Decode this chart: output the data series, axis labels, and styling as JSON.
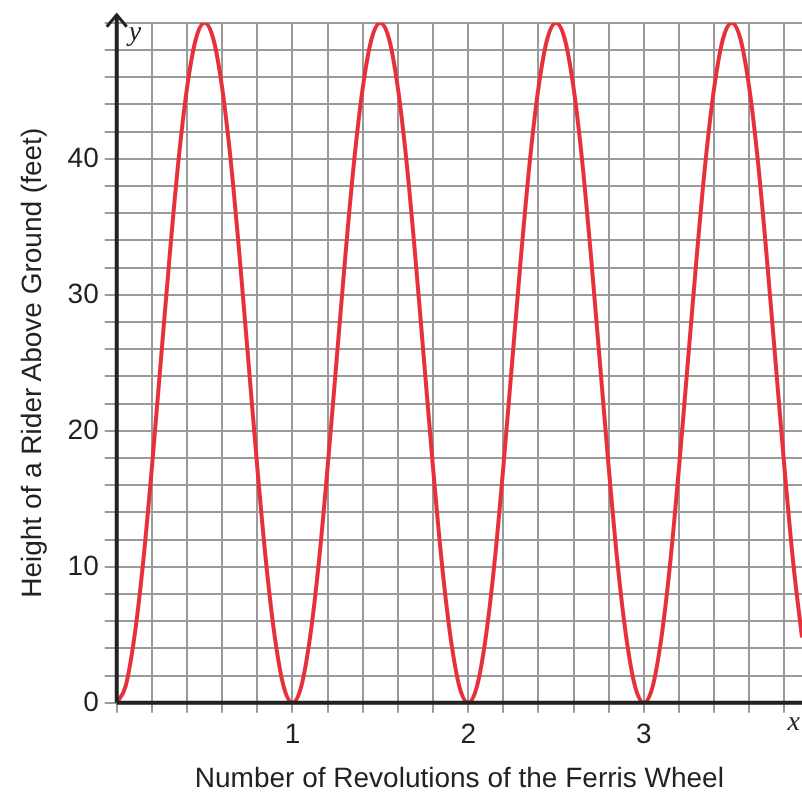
{
  "chart_data": {
    "type": "line",
    "xlabel": "Number of Revolutions of the Ferris Wheel",
    "ylabel": "Height of a Rider Above Ground (feet)",
    "annotations": [
      "x",
      "y"
    ],
    "x": [
      0,
      0.05,
      0.1,
      0.15,
      0.2,
      0.25,
      0.3,
      0.35,
      0.4,
      0.45,
      0.5,
      0.55,
      0.6,
      0.65,
      0.7,
      0.75,
      0.8,
      0.85,
      0.9,
      0.95,
      1,
      1.05,
      1.1,
      1.15,
      1.2,
      1.25,
      1.3,
      1.35,
      1.4,
      1.45,
      1.5,
      1.55,
      1.6,
      1.65,
      1.7,
      1.75,
      1.8,
      1.85,
      1.9,
      1.95,
      2,
      2.05,
      2.1,
      2.15,
      2.2,
      2.25,
      2.3,
      2.35,
      2.4,
      2.45,
      2.5,
      2.55,
      2.6,
      2.65,
      2.7,
      2.75,
      2.8,
      2.85,
      2.9,
      2.95,
      3,
      3.05,
      3.1,
      3.15,
      3.2,
      3.25,
      3.3,
      3.35,
      3.4,
      3.45,
      3.5,
      3.55,
      3.6,
      3.65,
      3.7,
      3.75,
      3.8,
      3.85,
      3.9
    ],
    "series": [
      {
        "color": "#e8303a",
        "values": [
          0,
          1.2,
          4.8,
          10.3,
          17.3,
          25,
          32.7,
          39.7,
          45.2,
          48.8,
          50,
          48.8,
          45.2,
          39.7,
          32.7,
          25,
          17.3,
          10.3,
          4.8,
          1.2,
          0,
          1.2,
          4.8,
          10.3,
          17.3,
          25,
          32.7,
          39.7,
          45.2,
          48.8,
          50,
          48.8,
          45.2,
          39.7,
          32.7,
          25,
          17.3,
          10.3,
          4.8,
          1.2,
          0,
          1.2,
          4.8,
          10.3,
          17.3,
          25,
          32.7,
          39.7,
          45.2,
          48.8,
          50,
          48.8,
          45.2,
          39.7,
          32.7,
          25,
          17.3,
          10.3,
          4.8,
          1.2,
          0,
          1.2,
          4.8,
          10.3,
          17.3,
          25,
          32.7,
          39.7,
          45.2,
          48.8,
          50,
          48.8,
          45.2,
          39.7,
          32.7,
          25,
          17.3,
          10.3,
          4.8
        ]
      }
    ],
    "xlim": [
      0,
      3.9
    ],
    "ylim": [
      0,
      50
    ],
    "xticks": [
      {
        "value": 0,
        "label": null
      },
      {
        "value": 0.2,
        "label": null
      },
      {
        "value": 0.4,
        "label": null
      },
      {
        "value": 0.6,
        "label": null
      },
      {
        "value": 0.8,
        "label": null
      },
      1,
      {
        "value": 1.2,
        "label": null
      },
      {
        "value": 1.4,
        "label": null
      },
      {
        "value": 1.6,
        "label": null
      },
      {
        "value": 1.8,
        "label": null
      },
      2,
      {
        "value": 2.2,
        "label": null
      },
      {
        "value": 2.4,
        "label": null
      },
      {
        "value": 2.6,
        "label": null
      },
      {
        "value": 2.8,
        "label": null
      },
      3,
      {
        "value": 3.2,
        "label": null
      },
      {
        "value": 3.4,
        "label": null
      },
      {
        "value": 3.6,
        "label": null
      },
      {
        "value": 3.8,
        "label": null
      }
    ],
    "yticks": [
      0,
      {
        "value": 2,
        "label": null
      },
      {
        "value": 4,
        "label": null
      },
      {
        "value": 6,
        "label": null
      },
      {
        "value": 8,
        "label": null
      },
      10,
      {
        "value": 12,
        "label": null
      },
      {
        "value": 14,
        "label": null
      },
      {
        "value": 16,
        "label": null
      },
      {
        "value": 18,
        "label": null
      },
      20,
      {
        "value": 22,
        "label": null
      },
      {
        "value": 24,
        "label": null
      },
      {
        "value": 26,
        "label": null
      },
      {
        "value": 28,
        "label": null
      },
      30,
      {
        "value": 32,
        "label": null
      },
      {
        "value": 34,
        "label": null
      },
      {
        "value": 36,
        "label": null
      },
      {
        "value": 38,
        "label": null
      },
      40,
      {
        "value": 42,
        "label": null
      },
      {
        "value": 44,
        "label": null
      },
      {
        "value": 46,
        "label": null
      },
      {
        "value": 48,
        "label": null
      },
      {
        "value": 50,
        "label": null
      }
    ],
    "grid": true,
    "legend": false,
    "marker": "none",
    "line_style": "solid"
  }
}
